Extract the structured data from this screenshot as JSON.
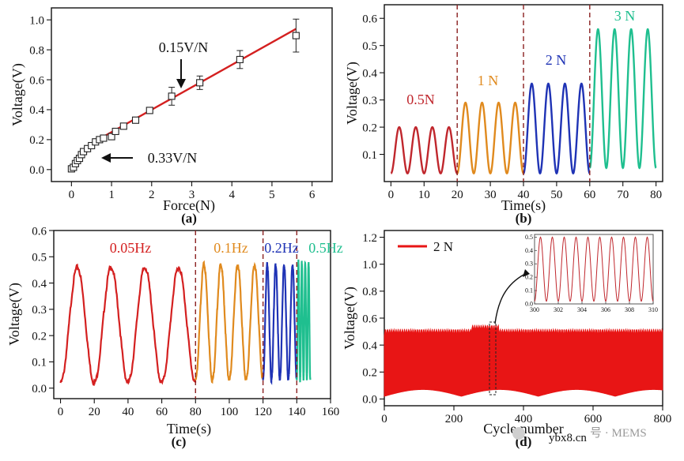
{
  "chart_data": [
    {
      "panel": "a",
      "type": "scatter",
      "xlabel": "Force(N)",
      "ylabel": "Voltage(V)",
      "xlim": [
        -0.5,
        6.5
      ],
      "ylim": [
        -0.08,
        1.08
      ],
      "xticks": [
        "0",
        "1",
        "2",
        "3",
        "4",
        "5",
        "6"
      ],
      "yticks": [
        "0.0",
        "0.2",
        "0.4",
        "0.6",
        "0.8",
        "1.0"
      ],
      "points": {
        "x": [
          0,
          0.05,
          0.1,
          0.15,
          0.2,
          0.25,
          0.3,
          0.4,
          0.5,
          0.6,
          0.7,
          0.8,
          1.0,
          1.1,
          1.3,
          1.6,
          1.95,
          2.5,
          3.2,
          4.2,
          5.6
        ],
        "y": [
          0.005,
          0.015,
          0.04,
          0.06,
          0.075,
          0.1,
          0.12,
          0.14,
          0.16,
          0.185,
          0.2,
          0.21,
          0.22,
          0.255,
          0.29,
          0.33,
          0.395,
          0.49,
          0.58,
          0.735,
          0.895
        ],
        "err": [
          0.02,
          0.02,
          0.02,
          0.02,
          0.02,
          0.02,
          0.02,
          0.02,
          0.02,
          0.02,
          0.02,
          0.02,
          0.02,
          0.02,
          0.02,
          0.02,
          0.02,
          0.06,
          0.045,
          0.06,
          0.11
        ]
      },
      "fit_lines": [
        {
          "label": "0.33V/N",
          "x": [
            0,
            0.6
          ],
          "y": [
            0.0,
            0.19
          ]
        },
        {
          "label": "0.15V/N",
          "x": [
            0.6,
            5.6
          ],
          "y": [
            0.19,
            0.94
          ]
        }
      ],
      "annotations": [
        "0.15V/N",
        "0.33V/N"
      ],
      "panel_label": "(a)"
    },
    {
      "panel": "b",
      "type": "line",
      "xlabel": "Time(s)",
      "ylabel": "Voltage(V)",
      "xlim": [
        -2,
        82
      ],
      "ylim": [
        0,
        0.65
      ],
      "xticks": [
        "0",
        "10",
        "20",
        "30",
        "40",
        "50",
        "60",
        "70",
        "80"
      ],
      "yticks": [
        "0.1",
        "0.2",
        "0.3",
        "0.4",
        "0.5",
        "0.6"
      ],
      "dividers": [
        20,
        40,
        60
      ],
      "series": [
        {
          "name": "0.5N",
          "t_range": [
            0,
            20
          ],
          "cycles": 4,
          "min": 0.03,
          "max": 0.2,
          "color": "#c0272d"
        },
        {
          "name": "1N",
          "t_range": [
            20,
            40
          ],
          "cycles": 4,
          "min": 0.03,
          "max": 0.29,
          "color": "#e08a1e"
        },
        {
          "name": "2N",
          "t_range": [
            40,
            60
          ],
          "cycles": 4,
          "min": 0.03,
          "max": 0.36,
          "color": "#1f33b5"
        },
        {
          "name": "3N",
          "t_range": [
            60,
            80
          ],
          "cycles": 4,
          "min": 0.05,
          "max": 0.56,
          "color": "#1fbf8f"
        }
      ],
      "labels": [
        "0.5N",
        "1 N",
        "2 N",
        "3 N"
      ],
      "panel_label": "(b)"
    },
    {
      "panel": "c",
      "type": "line",
      "xlabel": "Time(s)",
      "ylabel": "Voltage(V)",
      "xlim": [
        -4,
        160
      ],
      "ylim": [
        -0.04,
        0.6
      ],
      "xticks": [
        "0",
        "20",
        "40",
        "60",
        "80",
        "100",
        "120",
        "140",
        "160"
      ],
      "yticks": [
        "0.0",
        "0.1",
        "0.2",
        "0.3",
        "0.4",
        "0.5",
        "0.6"
      ],
      "dividers": [
        80,
        120,
        140
      ],
      "series": [
        {
          "name": "0.05Hz",
          "t_range": [
            0,
            80
          ],
          "cycles": 4,
          "min": 0.02,
          "max": 0.46,
          "color": "#d42020"
        },
        {
          "name": "0.1Hz",
          "t_range": [
            80,
            120
          ],
          "cycles": 4,
          "min": 0.03,
          "max": 0.47,
          "color": "#e08a1e"
        },
        {
          "name": "0.2Hz",
          "t_range": [
            120,
            140
          ],
          "cycles": 4,
          "min": 0.03,
          "max": 0.47,
          "color": "#1f33b5"
        },
        {
          "name": "0.5Hz",
          "t_range": [
            140,
            148
          ],
          "cycles": 4,
          "min": 0.03,
          "max": 0.48,
          "color": "#1fbf8f"
        }
      ],
      "labels": [
        "0.05Hz",
        "0.1Hz",
        "0.2Hz",
        "0.5Hz"
      ],
      "panel_label": "(c)"
    },
    {
      "panel": "d",
      "type": "area",
      "xlabel": "Cycle number",
      "ylabel": "Voltage(V)",
      "xlim": [
        0,
        800
      ],
      "ylim": [
        -0.05,
        1.25
      ],
      "xticks": [
        "0",
        "200",
        "400",
        "600",
        "800"
      ],
      "yticks": [
        "0.0",
        "0.2",
        "0.4",
        "0.6",
        "0.8",
        "1.0",
        "1.2"
      ],
      "series": [
        {
          "name": "2 N",
          "min": 0.02,
          "max": 0.5,
          "color": "#e81515"
        }
      ],
      "legend": "2 N",
      "inset": {
        "x_range": [
          300,
          310
        ],
        "y_range": [
          0,
          0.52
        ],
        "xticks": [
          "300",
          "302",
          "304",
          "306",
          "308",
          "310"
        ],
        "yticks": [
          "0.0",
          "0.1",
          "0.2",
          "0.3",
          "0.4",
          "0.5"
        ],
        "cycles": 10,
        "min": 0.02,
        "max": 0.5
      },
      "panel_label": "(d)"
    }
  ],
  "watermark": {
    "site": "ybx8.cn",
    "text": "号 · MEMS"
  }
}
